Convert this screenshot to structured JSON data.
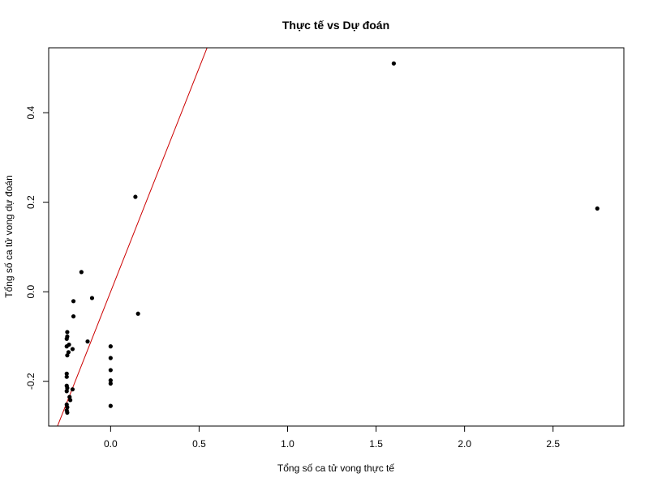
{
  "chart_data": {
    "type": "scatter",
    "title": "Thực tế vs Dự đoán",
    "xlabel": "Tổng số ca tử vong thực tế",
    "ylabel": "Tổng số ca tử vong dự đoán",
    "xlim": [
      -0.35,
      2.9
    ],
    "ylim": [
      -0.3,
      0.545
    ],
    "x_ticks": [
      0.0,
      0.5,
      1.0,
      1.5,
      2.0,
      2.5
    ],
    "x_tick_labels": [
      "0.0",
      "0.5",
      "1.0",
      "1.5",
      "2.0",
      "2.5"
    ],
    "y_ticks": [
      -0.2,
      0.0,
      0.2,
      0.4
    ],
    "y_tick_labels": [
      "-0.2",
      "0.0",
      "0.2",
      "0.4"
    ],
    "grid": false,
    "point_color": "#000000",
    "line_color": "#cc0000",
    "reference_line": {
      "intercept": 0.0,
      "slope": 1.0
    },
    "points": [
      {
        "x": 1.6,
        "y": 0.51
      },
      {
        "x": 2.75,
        "y": 0.186
      },
      {
        "x": 0.14,
        "y": 0.212
      },
      {
        "x": 0.155,
        "y": -0.049
      },
      {
        "x": -0.165,
        "y": 0.044
      },
      {
        "x": -0.105,
        "y": -0.014
      },
      {
        "x": -0.21,
        "y": -0.021
      },
      {
        "x": -0.21,
        "y": -0.055
      },
      {
        "x": -0.13,
        "y": -0.111
      },
      {
        "x": -0.245,
        "y": -0.09
      },
      {
        "x": -0.245,
        "y": -0.1
      },
      {
        "x": -0.248,
        "y": -0.105
      },
      {
        "x": -0.235,
        "y": -0.118
      },
      {
        "x": -0.248,
        "y": -0.122
      },
      {
        "x": -0.215,
        "y": -0.128
      },
      {
        "x": -0.238,
        "y": -0.135
      },
      {
        "x": -0.245,
        "y": -0.142
      },
      {
        "x": -0.248,
        "y": -0.183
      },
      {
        "x": -0.248,
        "y": -0.19
      },
      {
        "x": -0.248,
        "y": -0.21
      },
      {
        "x": -0.245,
        "y": -0.215
      },
      {
        "x": -0.215,
        "y": -0.218
      },
      {
        "x": -0.248,
        "y": -0.222
      },
      {
        "x": -0.232,
        "y": -0.235
      },
      {
        "x": -0.228,
        "y": -0.242
      },
      {
        "x": -0.248,
        "y": -0.252
      },
      {
        "x": -0.245,
        "y": -0.258
      },
      {
        "x": -0.248,
        "y": -0.265
      },
      {
        "x": -0.245,
        "y": -0.27
      },
      {
        "x": 0.0,
        "y": -0.122
      },
      {
        "x": 0.0,
        "y": -0.148
      },
      {
        "x": 0.0,
        "y": -0.175
      },
      {
        "x": 0.0,
        "y": -0.198
      },
      {
        "x": 0.0,
        "y": -0.205
      },
      {
        "x": 0.0,
        "y": -0.255
      }
    ]
  }
}
